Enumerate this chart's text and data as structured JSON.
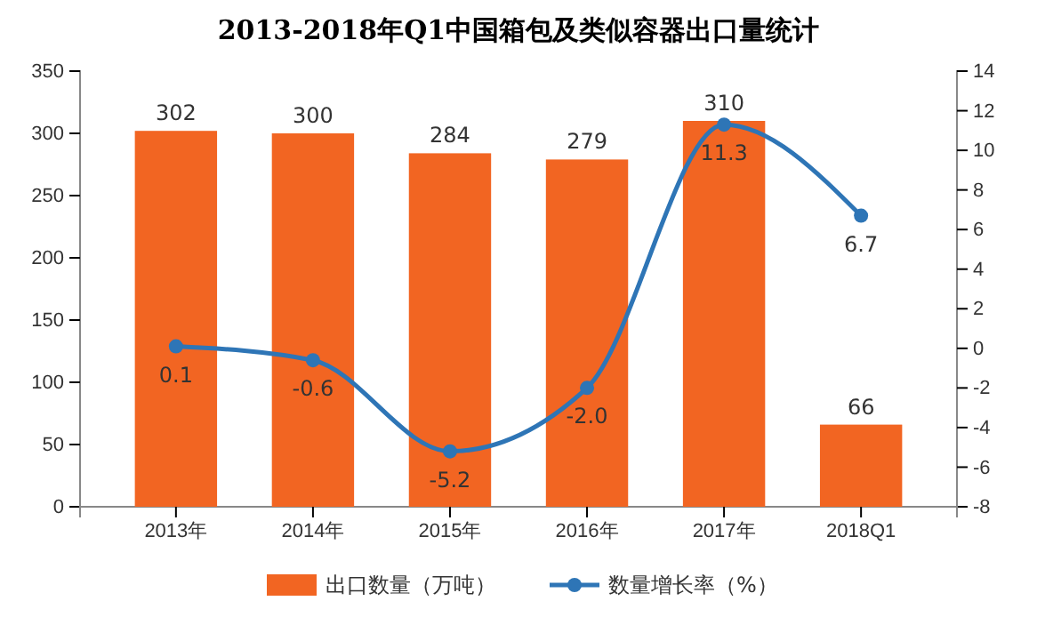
{
  "chart_data": {
    "type": "bar",
    "title": "2013-2018年Q1中国箱包及类似容器出口量统计",
    "categories": [
      "2013年",
      "2014年",
      "2015年",
      "2016年",
      "2017年",
      "2018Q1"
    ],
    "series": [
      {
        "name": "出口数量（万吨）",
        "color": "#f26522",
        "values": [
          302,
          300,
          284,
          279,
          310,
          66
        ]
      },
      {
        "name": "数量增长率（%）",
        "type": "line",
        "axis": "y2",
        "color": "#2e75b6",
        "marker": "circle",
        "values": [
          0.1,
          -0.6,
          -5.2,
          -2.0,
          11.3,
          6.7
        ],
        "value_labels": [
          "0.1",
          "-0.6",
          "-5.2",
          "-2.0",
          "11.3",
          "6.7"
        ]
      }
    ],
    "ylim": [
      0,
      350
    ],
    "yticks": [
      0,
      50,
      100,
      150,
      200,
      250,
      300,
      350
    ],
    "y2lim": [
      -8,
      14
    ],
    "y2ticks": [
      -8,
      -6,
      -4,
      -2,
      0,
      2,
      4,
      6,
      8,
      10,
      12,
      14
    ],
    "data_labels": true,
    "legend": "bottom",
    "grid": false
  }
}
